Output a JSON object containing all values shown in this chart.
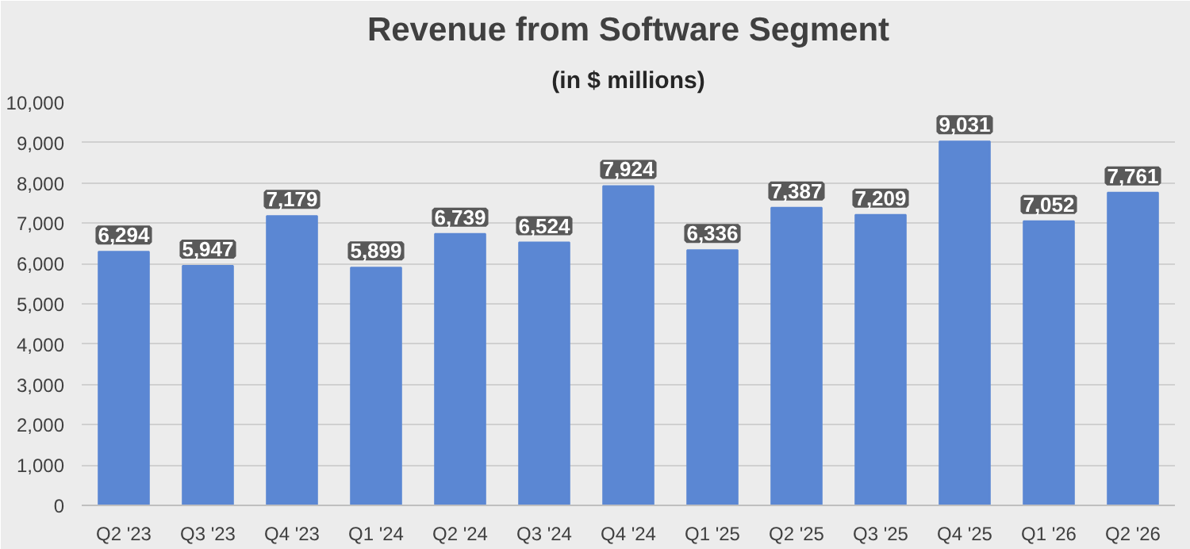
{
  "chart_data": {
    "type": "bar",
    "title": "Revenue from Software Segment",
    "subtitle": "(in $ millions)",
    "categories": [
      "Q2 '23",
      "Q3 '23",
      "Q4 '23",
      "Q1 '24",
      "Q2 '24",
      "Q3 '24",
      "Q4 '24",
      "Q1 '25",
      "Q2 '25",
      "Q3 '25",
      "Q4 '25",
      "Q1 '26",
      "Q2 '26"
    ],
    "values": [
      6294,
      5947,
      7179,
      5899,
      6739,
      6524,
      7924,
      6336,
      7387,
      7209,
      9031,
      7052,
      7761
    ],
    "color": "#5b87d3",
    "ylim": [
      0,
      10000
    ],
    "yticks": [
      {
        "value": 0,
        "label": "0"
      },
      {
        "value": 1000,
        "label": "1,000"
      },
      {
        "value": 2000,
        "label": "2,000"
      },
      {
        "value": 3000,
        "label": "3,000"
      },
      {
        "value": 4000,
        "label": "4,000"
      },
      {
        "value": 5000,
        "label": "5,000"
      },
      {
        "value": 6000,
        "label": "6,000"
      },
      {
        "value": 7000,
        "label": "7,000"
      },
      {
        "value": 8000,
        "label": "8,000"
      },
      {
        "value": 9000,
        "label": "9,000"
      },
      {
        "value": 10000,
        "label": "10,000"
      }
    ],
    "grid": "y",
    "value_labels": [
      "6,294",
      "5,947",
      "7,179",
      "5,899",
      "6,739",
      "6,524",
      "7,924",
      "6,336",
      "7,387",
      "7,209",
      "9,031",
      "7,052",
      "7,761"
    ]
  }
}
